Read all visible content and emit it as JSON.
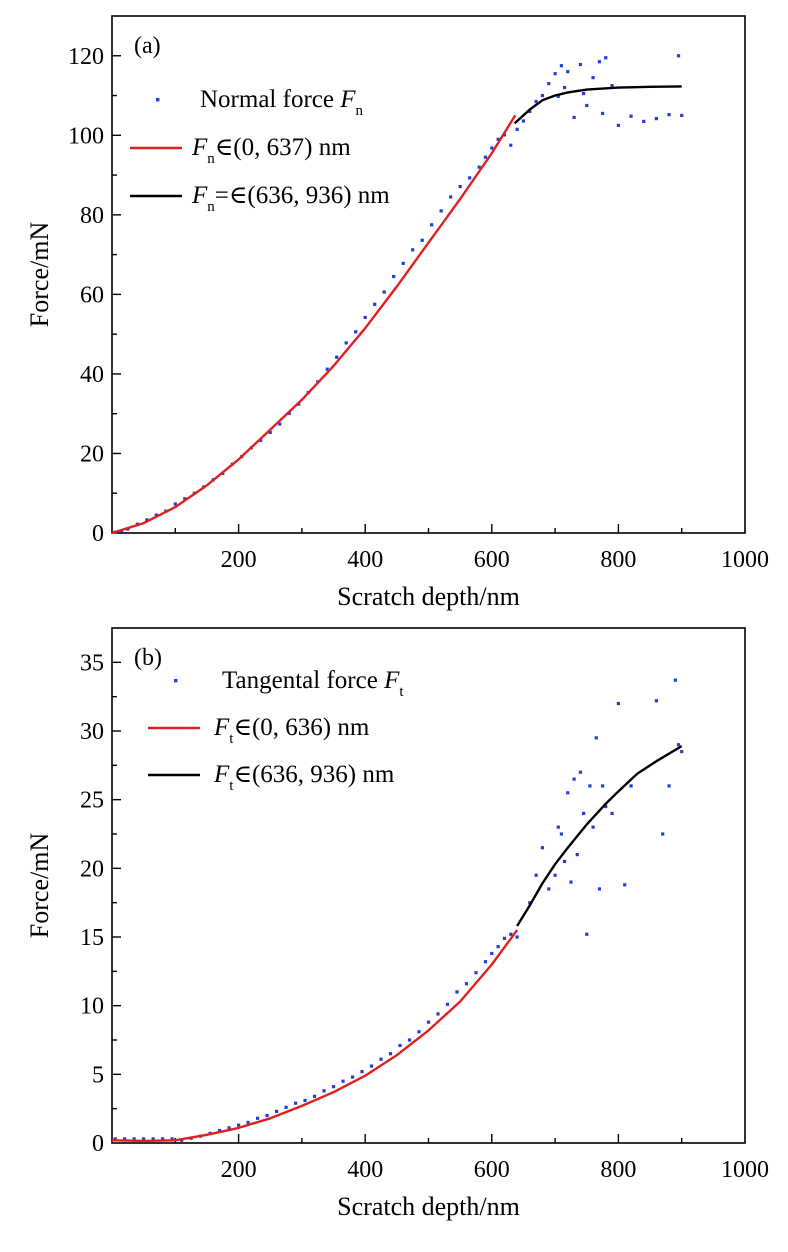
{
  "colors": {
    "scatter": "#1f3fd6",
    "fit_low": "#e02020",
    "fit_high": "#000000",
    "axes": "#000000"
  },
  "chart_data": [
    {
      "type": "scatter",
      "panel_label": "(a)",
      "xlabel": "Scratch depth/nm",
      "ylabel": "Force/mN",
      "xlim": [
        0,
        1000
      ],
      "ylim": [
        0,
        130
      ],
      "xticks": [
        200,
        400,
        600,
        800,
        1000
      ],
      "xtick_labels": [
        "200",
        "400",
        "600",
        "800",
        "1000"
      ],
      "yticks": [
        0,
        20,
        40,
        60,
        80,
        100,
        120
      ],
      "ytick_labels": [
        "0",
        "20",
        "40",
        "60",
        "80",
        "100",
        "120"
      ],
      "grid": false,
      "legend_position": "top-left",
      "legend": [
        {
          "pre": "Normal force ",
          "sym": "F",
          "sub": "n",
          "post": ""
        },
        {
          "pre": "",
          "sym": "F",
          "sub": "n",
          "post": "∈(0, 637) nm"
        },
        {
          "pre": "",
          "sym": "F",
          "sub": "n",
          "post": "=∈(636, 936) nm"
        }
      ],
      "series": [
        {
          "kind": "points",
          "x": [
            5,
            15,
            25,
            40,
            55,
            70,
            85,
            100,
            115,
            130,
            145,
            160,
            175,
            190,
            205,
            220,
            235,
            250,
            265,
            280,
            295,
            310,
            325,
            340,
            355,
            370,
            385,
            400,
            415,
            430,
            445,
            460,
            475,
            490,
            505,
            520,
            535,
            550,
            565,
            580,
            590,
            600,
            610,
            620,
            630,
            640,
            650,
            660,
            670,
            680,
            690,
            700,
            705,
            710,
            715,
            720,
            730,
            740,
            745,
            750,
            760,
            770,
            775,
            780,
            790,
            800,
            820,
            840,
            860,
            880,
            895,
            900
          ],
          "y": [
            0.2,
            0.5,
            1.0,
            2.2,
            3.3,
            4.5,
            5.5,
            7.3,
            8.6,
            10.0,
            11.6,
            13.4,
            15.0,
            17.3,
            19.2,
            21.4,
            23.3,
            25.3,
            27.4,
            30.1,
            32.4,
            35.3,
            38.0,
            41.2,
            44.2,
            47.8,
            50.6,
            54.2,
            57.5,
            60.6,
            64.5,
            67.8,
            71.2,
            73.6,
            77.5,
            81.0,
            84.5,
            87.1,
            89.3,
            92.0,
            94.5,
            96.8,
            99.0,
            100.1,
            97.5,
            101.5,
            103.6,
            106.0,
            108.5,
            110.0,
            113.0,
            115.5,
            109.8,
            117.5,
            112.0,
            116.0,
            104.5,
            117.8,
            110.5,
            107.5,
            114.5,
            118.5,
            105.5,
            119.5,
            112.5,
            102.5,
            104.8,
            103.5,
            104.2,
            105.2,
            120.0,
            105.0
          ]
        },
        {
          "kind": "fit",
          "x": [
            0,
            50,
            100,
            150,
            200,
            250,
            300,
            350,
            400,
            450,
            500,
            550,
            600,
            637
          ],
          "y": [
            0,
            2.5,
            6.5,
            12.0,
            18.5,
            26.0,
            33.5,
            42.0,
            51.5,
            62.0,
            73.0,
            84.0,
            95.5,
            105.0
          ]
        },
        {
          "kind": "fit",
          "x": [
            636,
            660,
            680,
            700,
            720,
            750,
            800,
            850,
            900
          ],
          "y": [
            103.0,
            106.5,
            108.8,
            110.0,
            110.8,
            111.5,
            112.0,
            112.2,
            112.3
          ]
        }
      ]
    },
    {
      "type": "scatter",
      "panel_label": "(b)",
      "xlabel": "Scratch depth/nm",
      "ylabel": "Force/mN",
      "xlim": [
        0,
        1000
      ],
      "ylim": [
        0,
        37.5
      ],
      "xticks": [
        200,
        400,
        600,
        800,
        1000
      ],
      "xtick_labels": [
        "200",
        "400",
        "600",
        "800",
        "1000"
      ],
      "yticks": [
        0,
        5,
        10,
        15,
        20,
        25,
        30,
        35
      ],
      "ytick_labels": [
        "0",
        "5",
        "10",
        "15",
        "20",
        "25",
        "30",
        "35"
      ],
      "grid": false,
      "legend_position": "top-left",
      "legend": [
        {
          "pre": "Tangental force ",
          "sym": "F",
          "sub": "t",
          "post": ""
        },
        {
          "pre": "",
          "sym": "F",
          "sub": "t",
          "post": "∈(0, 636) nm"
        },
        {
          "pre": "",
          "sym": "F",
          "sub": "t",
          "post": "∈(636, 936) nm"
        }
      ],
      "series": [
        {
          "kind": "points",
          "x": [
            5,
            20,
            35,
            50,
            65,
            80,
            95,
            110,
            125,
            140,
            155,
            170,
            185,
            200,
            215,
            230,
            245,
            260,
            275,
            290,
            305,
            320,
            335,
            350,
            365,
            380,
            395,
            410,
            425,
            440,
            455,
            470,
            485,
            500,
            515,
            530,
            545,
            560,
            575,
            590,
            600,
            610,
            620,
            630,
            640,
            660,
            670,
            680,
            690,
            700,
            705,
            710,
            715,
            720,
            725,
            730,
            735,
            740,
            745,
            750,
            755,
            760,
            765,
            770,
            775,
            780,
            790,
            800,
            810,
            820,
            860,
            870,
            880,
            890,
            895,
            900
          ],
          "y": [
            0.3,
            0.3,
            0.3,
            0.3,
            0.3,
            0.3,
            0.3,
            0.2,
            0.35,
            0.5,
            0.7,
            0.9,
            1.1,
            1.3,
            1.5,
            1.8,
            2.0,
            2.3,
            2.6,
            2.9,
            3.1,
            3.4,
            3.8,
            4.1,
            4.5,
            4.8,
            5.2,
            5.6,
            6.1,
            6.5,
            7.1,
            7.5,
            8.1,
            8.8,
            9.4,
            10.1,
            11.0,
            11.6,
            12.4,
            13.2,
            13.8,
            14.3,
            14.9,
            15.2,
            15.0,
            17.5,
            19.5,
            21.5,
            18.5,
            19.5,
            23.0,
            22.5,
            20.5,
            25.5,
            19.0,
            26.5,
            21.0,
            27.0,
            24.0,
            15.2,
            26.0,
            23.0,
            29.5,
            18.5,
            26.0,
            24.5,
            24.0,
            32.0,
            18.8,
            26.0,
            32.2,
            22.5,
            26.0,
            33.7,
            29.0,
            28.5
          ]
        },
        {
          "kind": "fit",
          "x": [
            0,
            50,
            100,
            150,
            200,
            250,
            300,
            350,
            400,
            450,
            500,
            550,
            600,
            640
          ],
          "y": [
            0.2,
            0.15,
            0.2,
            0.6,
            1.1,
            1.8,
            2.7,
            3.7,
            4.9,
            6.4,
            8.2,
            10.3,
            13.0,
            15.5
          ]
        },
        {
          "kind": "fit",
          "x": [
            640,
            660,
            680,
            700,
            720,
            750,
            780,
            800,
            830,
            860,
            900
          ],
          "y": [
            15.8,
            17.3,
            18.9,
            20.3,
            21.5,
            23.2,
            24.7,
            25.6,
            26.9,
            27.8,
            28.9
          ]
        }
      ]
    }
  ]
}
